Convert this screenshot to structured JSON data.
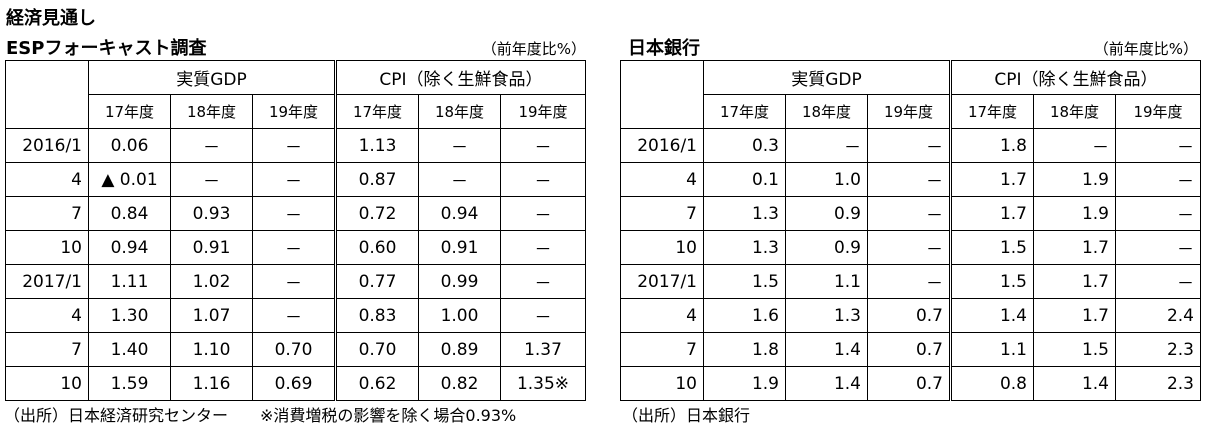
{
  "header": {
    "title": "経済見通し"
  },
  "left": {
    "title": "ESPフォーキャスト調査",
    "unit": "（前年度比%）",
    "groups": [
      "実質GDP",
      "CPI（除く生鮮食品）"
    ],
    "years": [
      "17年度",
      "18年度",
      "19年度",
      "17年度",
      "18年度",
      "19年度"
    ],
    "rows": [
      {
        "label": "2016/1",
        "cells": [
          "0.06",
          "－",
          "－",
          "1.13",
          "－",
          "－"
        ]
      },
      {
        "label": "4",
        "cells": [
          "▲ 0.01",
          "－",
          "－",
          "0.87",
          "－",
          "－"
        ]
      },
      {
        "label": "7",
        "cells": [
          "0.84",
          "0.93",
          "－",
          "0.72",
          "0.94",
          "－"
        ]
      },
      {
        "label": "10",
        "cells": [
          "0.94",
          "0.91",
          "－",
          "0.60",
          "0.91",
          "－"
        ]
      },
      {
        "label": "2017/1",
        "cells": [
          "1.11",
          "1.02",
          "－",
          "0.77",
          "0.99",
          "－"
        ]
      },
      {
        "label": "4",
        "cells": [
          "1.30",
          "1.07",
          "－",
          "0.83",
          "1.00",
          "－"
        ]
      },
      {
        "label": "7",
        "cells": [
          "1.40",
          "1.10",
          "0.70",
          "0.70",
          "0.89",
          "1.37"
        ]
      },
      {
        "label": "10",
        "cells": [
          "1.59",
          "1.16",
          "0.69",
          "0.62",
          "0.82",
          "1.35※"
        ]
      }
    ],
    "footer": "（出所）日本経済研究センター　　※消費増税の影響を除く場合0.93%"
  },
  "right": {
    "title": "日本銀行",
    "unit": "（前年度比%）",
    "groups": [
      "実質GDP",
      "CPI（除く生鮮食品）"
    ],
    "years": [
      "17年度",
      "18年度",
      "19年度",
      "17年度",
      "18年度",
      "19年度"
    ],
    "rows": [
      {
        "label": "2016/1",
        "cells": [
          "0.3",
          "－",
          "－",
          "1.8",
          "－",
          "－"
        ]
      },
      {
        "label": "4",
        "cells": [
          "0.1",
          "1.0",
          "－",
          "1.7",
          "1.9",
          "－"
        ]
      },
      {
        "label": "7",
        "cells": [
          "1.3",
          "0.9",
          "－",
          "1.7",
          "1.9",
          "－"
        ]
      },
      {
        "label": "10",
        "cells": [
          "1.3",
          "0.9",
          "－",
          "1.5",
          "1.7",
          "－"
        ]
      },
      {
        "label": "2017/1",
        "cells": [
          "1.5",
          "1.1",
          "－",
          "1.5",
          "1.7",
          "－"
        ]
      },
      {
        "label": "4",
        "cells": [
          "1.6",
          "1.3",
          "0.7",
          "1.4",
          "1.7",
          "2.4"
        ]
      },
      {
        "label": "7",
        "cells": [
          "1.8",
          "1.4",
          "0.7",
          "1.1",
          "1.5",
          "2.3"
        ]
      },
      {
        "label": "10",
        "cells": [
          "1.9",
          "1.4",
          "0.7",
          "0.8",
          "1.4",
          "2.3"
        ]
      }
    ],
    "footer": "（出所）日本銀行"
  }
}
